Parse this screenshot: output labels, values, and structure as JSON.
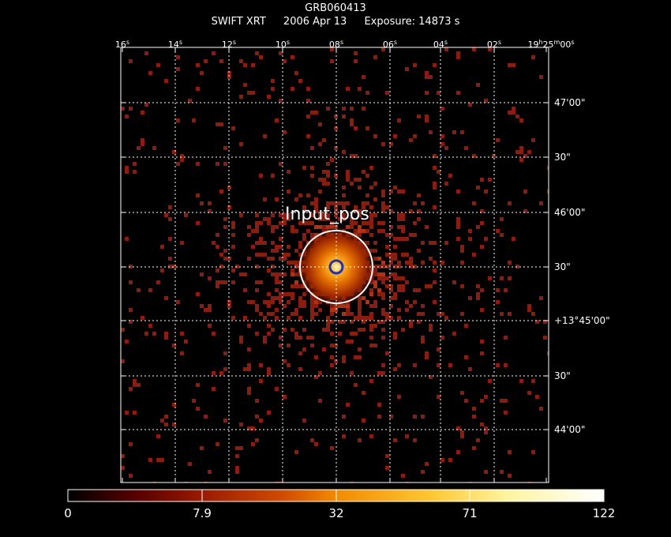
{
  "title": {
    "object": "GRB060413",
    "instrument": "SWIFT XRT",
    "date": "2006 Apr 13",
    "exposure": "Exposure: 14873 s"
  },
  "ra_axis": [
    {
      "value": "16",
      "unit": "s"
    },
    {
      "value": "14",
      "unit": "s"
    },
    {
      "value": "12",
      "unit": "s"
    },
    {
      "value": "10",
      "unit": "s"
    },
    {
      "value": "08",
      "unit": "s"
    },
    {
      "value": "06",
      "unit": "s"
    },
    {
      "value": "04",
      "unit": "s"
    },
    {
      "value": "02",
      "unit": "s"
    },
    {
      "value": "19",
      "unit": "h",
      "min": "25",
      "sec": "00"
    }
  ],
  "dec_axis": [
    "47'00\"",
    "30\"",
    "46'00\"",
    "30\"",
    "+13°45'00\"",
    "30\"",
    "44'00\""
  ],
  "source": {
    "label": "Input_pos",
    "colors": {
      "circle_outer": "#ffffff",
      "circle_inner": "#1f2fb8"
    }
  },
  "colorbar": {
    "tick_labels": [
      "0",
      "7.9",
      "32",
      "71",
      "122"
    ],
    "colormap": [
      "#000000",
      "#5a0000",
      "#9a1a00",
      "#d24a00",
      "#f28a00",
      "#ffc832",
      "#fff4a0",
      "#ffffff"
    ]
  },
  "colors": {
    "background": "#000000",
    "grid": "#ffffff",
    "counts": "#8a1c10"
  }
}
